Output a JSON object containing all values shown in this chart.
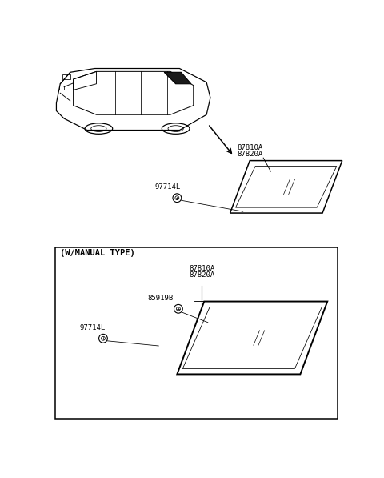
{
  "bg_color": "#ffffff",
  "line_color": "#000000",
  "dark_fill": "#1a1a1a",
  "labels": {
    "87810A_87820A_top": [
      "87810A",
      "87820A"
    ],
    "97714L_top": "97714L",
    "w_manual": "(W/MANUAL TYPE)",
    "87810A_87820A_bot": [
      "87810A",
      "87820A"
    ],
    "85919B": "85919B",
    "97714L_bot": "97714L"
  },
  "figsize": [
    4.8,
    5.97
  ],
  "dpi": 100
}
